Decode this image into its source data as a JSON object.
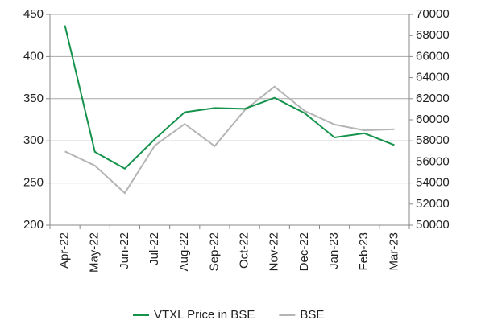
{
  "chart_data": {
    "type": "line",
    "categories": [
      "Apr-22",
      "May-22",
      "Jun-22",
      "Jul-22",
      "Aug-22",
      "Sep-22",
      "Oct-22",
      "Nov-22",
      "Dec-22",
      "Jan-23",
      "Feb-23",
      "Mar-23"
    ],
    "series": [
      {
        "name": "VTXL Price in BSE",
        "color": "#15924b",
        "values": [
          437,
          287,
          267,
          302,
          334,
          339,
          338,
          351,
          333,
          304,
          309,
          295
        ]
      },
      {
        "name": "BSE",
        "color": "#b5b5b5",
        "axis": "y2",
        "values": [
          57000,
          55650,
          53050,
          57550,
          59600,
          57500,
          60900,
          63150,
          60850,
          59550,
          59000,
          59100
        ]
      }
    ],
    "ylim": [
      200,
      450
    ],
    "yticks": [
      200,
      250,
      300,
      350,
      400,
      450
    ],
    "y2lim": [
      50000,
      70000
    ],
    "y2ticks": [
      50000,
      52000,
      54000,
      56000,
      58000,
      60000,
      62000,
      64000,
      66000,
      68000,
      70000
    ],
    "grid": true,
    "legend": "bottom"
  }
}
